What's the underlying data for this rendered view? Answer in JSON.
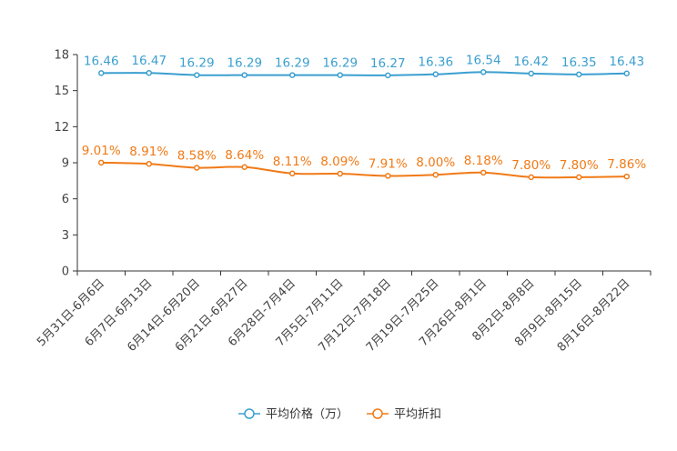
{
  "chart_data": {
    "type": "line",
    "title": "",
    "xlabel": "",
    "ylabel": "",
    "ylim": [
      0,
      18
    ],
    "yticks": [
      0,
      3,
      6,
      9,
      12,
      15,
      18
    ],
    "grid": false,
    "legend_position": "bottom",
    "categories": [
      "5月31日-6月6日",
      "6月7日-6月13日",
      "6月14日-6月20日",
      "6月21日-6月27日",
      "6月28日-7月4日",
      "7月5日-7月11日",
      "7月12日-7月18日",
      "7月19日-7月25日",
      "7月26日-8月1日",
      "8月2日-8月8日",
      "8月9日-8月15日",
      "8月16日-8月22日"
    ],
    "series": [
      {
        "name": "平均价格（万）",
        "color": "#3a9fd0",
        "values": [
          16.46,
          16.47,
          16.29,
          16.29,
          16.29,
          16.29,
          16.27,
          16.36,
          16.54,
          16.42,
          16.35,
          16.43
        ],
        "labels": [
          "16.46",
          "16.47",
          "16.29",
          "16.29",
          "16.29",
          "16.29",
          "16.27",
          "16.36",
          "16.54",
          "16.42",
          "16.35",
          "16.43"
        ]
      },
      {
        "name": "平均折扣",
        "color": "#f07a16",
        "values": [
          9.01,
          8.91,
          8.58,
          8.64,
          8.11,
          8.09,
          7.91,
          8.0,
          8.18,
          7.8,
          7.8,
          7.86
        ],
        "labels": [
          "9.01%",
          "8.91%",
          "8.58%",
          "8.64%",
          "8.11%",
          "8.09%",
          "7.91%",
          "8.00%",
          "8.18%",
          "7.80%",
          "7.80%",
          "7.86%"
        ]
      }
    ]
  }
}
